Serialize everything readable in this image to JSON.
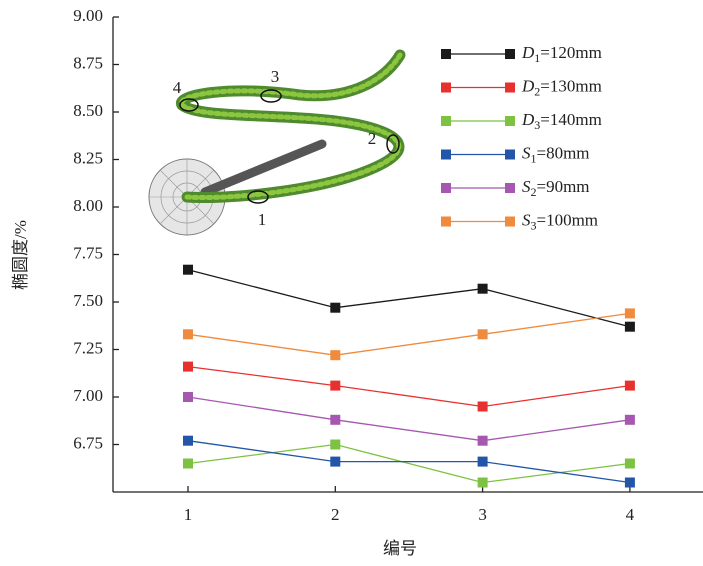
{
  "chart_data": {
    "type": "line",
    "x_label": "编号",
    "y_label": "椭圆度/%",
    "categories": [
      "1",
      "2",
      "3",
      "4"
    ],
    "ylim": [
      6.5,
      9.0
    ],
    "yticks": [
      6.75,
      {
        "value": 7.0,
        "label": "7.00"
      },
      7.25,
      {
        "value": 7.5,
        "label": "7.50"
      },
      7.75,
      {
        "value": 8.0,
        "label": "8.00"
      },
      8.25,
      {
        "value": 8.5,
        "label": "8.50"
      },
      8.75,
      {
        "value": 9.0,
        "label": "9.00"
      }
    ],
    "legend": "upper right",
    "series": [
      {
        "name": "D1=120mm",
        "color": "#1a1a1a",
        "values": [
          7.67,
          7.47,
          7.57,
          7.37
        ]
      },
      {
        "name": "D2=130mm",
        "color": "#e8312f",
        "values": [
          7.16,
          7.06,
          6.95,
          7.06
        ]
      },
      {
        "name": "D3=140mm",
        "color": "#7dc242",
        "values": [
          6.65,
          6.75,
          6.55,
          6.65
        ]
      },
      {
        "name": "S1=80mm",
        "color": "#2356a8",
        "values": [
          6.77,
          6.66,
          6.66,
          6.55
        ]
      },
      {
        "name": "S2=90mm",
        "color": "#a657b0",
        "values": [
          7.0,
          6.88,
          6.77,
          6.88
        ]
      },
      {
        "name": "S3=100mm",
        "color": "#f08a3c",
        "values": [
          7.33,
          7.22,
          7.33,
          7.44
        ]
      }
    ],
    "inset_labels": [
      "1",
      "2",
      "3",
      "4"
    ]
  }
}
